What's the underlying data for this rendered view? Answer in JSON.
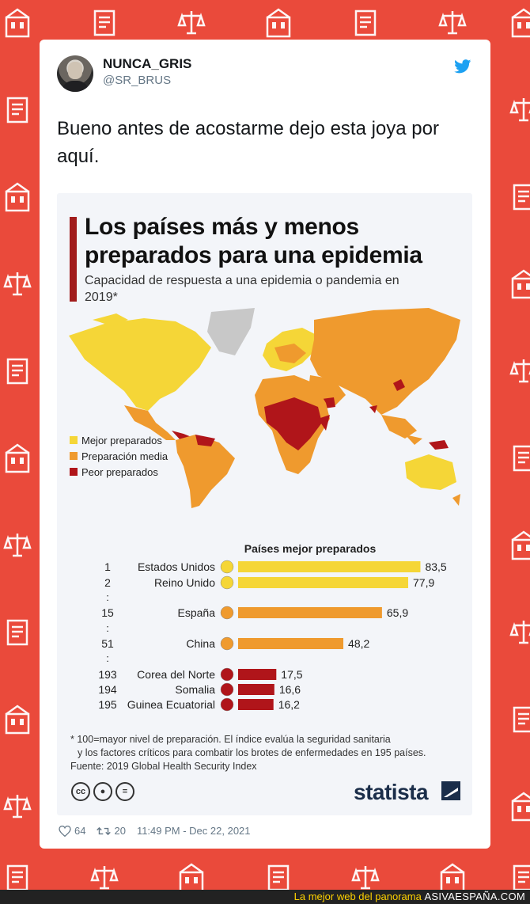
{
  "tweet": {
    "display_name": "NUNCA_GRIS",
    "handle": "@SR_BRUS",
    "text": "Bueno antes de acostarme dejo esta joya por aquí.",
    "likes": "64",
    "retweets": "20",
    "timestamp": "11:49 PM - Dec 22, 2021"
  },
  "infographic": {
    "title": "Los países más y menos preparados para una epidemia",
    "subtitle": "Capacidad de respuesta a una epidemia o pandemia en 2019*",
    "legend": [
      {
        "label": "Mejor preparados",
        "color": "#f5d637"
      },
      {
        "label": "Preparación media",
        "color": "#ef9a2e"
      },
      {
        "label": "Peor preparados",
        "color": "#b0151a"
      }
    ],
    "footnote_1": "* 100=mayor nivel de preparación. El índice evalúa la seguridad sanitaria",
    "footnote_2": "y los factores críticos para combatir los brotes de enfermedades en 195 países.",
    "source": "Fuente: 2019 Global Health Security Index",
    "brand": "statista",
    "cc_icons": [
      "cc-icon",
      "by-icon",
      "nd-icon"
    ]
  },
  "chart_data": {
    "type": "bar",
    "title": "Países mejor preparados",
    "xlim": [
      0,
      100
    ],
    "rows": [
      {
        "rank": "1",
        "name": "Estados Unidos",
        "value": 83.5,
        "label": "83,5",
        "color": "#f5d637"
      },
      {
        "rank": "2",
        "name": "Reino Unido",
        "value": 77.9,
        "label": "77,9",
        "color": "#f5d637"
      },
      {
        "rank": "15",
        "name": "España",
        "value": 65.9,
        "label": "65,9",
        "color": "#ef9a2e"
      },
      {
        "rank": "51",
        "name": "China",
        "value": 48.2,
        "label": "48,2",
        "color": "#ef9a2e"
      },
      {
        "rank": "193",
        "name": "Corea del Norte",
        "value": 17.5,
        "label": "17,5",
        "color": "#b0151a"
      },
      {
        "rank": "194",
        "name": "Somalia",
        "value": 16.6,
        "label": "16,6",
        "color": "#b0151a"
      },
      {
        "rank": "195",
        "name": "Guinea Ecuatorial",
        "value": 16.2,
        "label": "16,2",
        "color": "#b0151a"
      }
    ],
    "gap_marker": ":"
  },
  "site_banner": {
    "tagline": "La mejor web del panorama",
    "brand": "ASIVAESPAÑA.COM"
  }
}
